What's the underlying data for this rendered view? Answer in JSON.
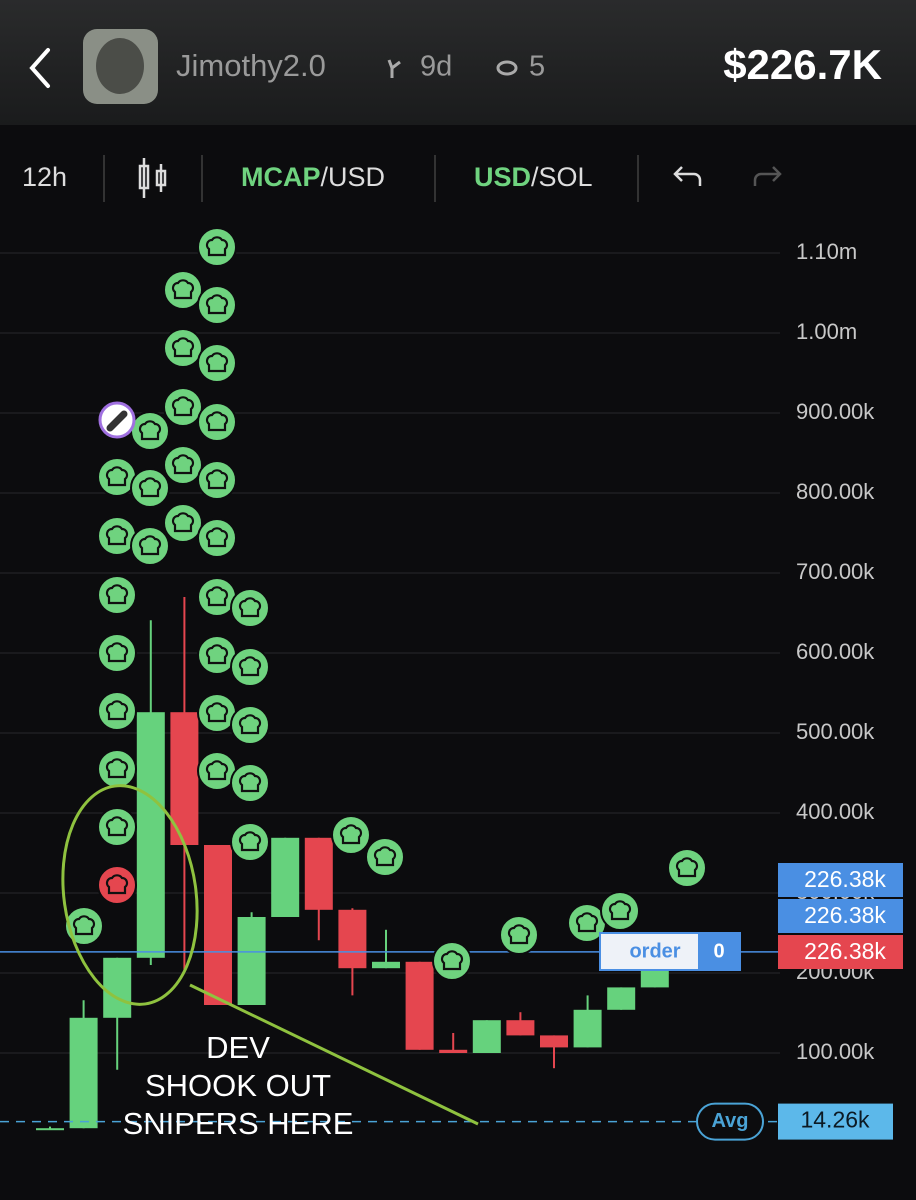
{
  "header": {
    "name": "Jimothy2.0",
    "age": "9d",
    "viewers": "5",
    "market_cap": "$226.7K"
  },
  "toolbar": {
    "interval": "12h",
    "pair1": {
      "highlight": "MCAP",
      "rest": "/USD"
    },
    "pair2": {
      "highlight": "USD",
      "rest": "/SOL"
    }
  },
  "chart_data": {
    "type": "candlestick",
    "open": [
      6000,
      6000,
      144000,
      219000,
      526000,
      360000,
      160000,
      270000,
      369000,
      279000,
      206000,
      214000,
      104000,
      100000,
      141000,
      122000,
      107000,
      154000,
      182000
    ],
    "high": [
      8000,
      166000,
      219000,
      641000,
      670000,
      360000,
      276000,
      369000,
      369000,
      281000,
      254000,
      214000,
      125000,
      141000,
      151000,
      122000,
      172000,
      182000,
      229000
    ],
    "low": [
      5000,
      6000,
      79000,
      210000,
      204000,
      160000,
      160000,
      270000,
      241000,
      172000,
      206000,
      104000,
      100000,
      100000,
      122000,
      81000,
      107000,
      154000,
      182000
    ],
    "close": [
      6000,
      144000,
      219000,
      526000,
      360000,
      160000,
      270000,
      369000,
      279000,
      206000,
      214000,
      104000,
      100000,
      141000,
      122000,
      107000,
      154000,
      182000,
      207000
    ],
    "up_color": "#66d27d",
    "down_color": "#e5464f",
    "ylim": [
      -80000,
      1140000
    ],
    "yticks": [
      {
        "value": 1100000,
        "label": "1.10m"
      },
      {
        "value": 1000000,
        "label": "1.00m"
      },
      {
        "value": 900000,
        "label": "900.00k"
      },
      {
        "value": 800000,
        "label": "800.00k"
      },
      {
        "value": 700000,
        "label": "700.00k"
      },
      {
        "value": 600000,
        "label": "600.00k"
      },
      {
        "value": 500000,
        "label": "500.00k"
      },
      {
        "value": 400000,
        "label": "400.00k"
      },
      {
        "value": 300000,
        "label": "300.00k"
      },
      {
        "value": 200000,
        "label": "200.00k"
      },
      {
        "value": 100000,
        "label": "100.00k"
      }
    ],
    "grid": true,
    "price_tags": [
      {
        "value": 226380,
        "label": "226.38k",
        "color": "#4a8fe3"
      },
      {
        "value": 226380,
        "label": "226.38k",
        "color": "#4a8fe3"
      },
      {
        "value": 226380,
        "label": "226.38k",
        "color": "#e5464f"
      }
    ],
    "order": {
      "label": "order",
      "count": "0"
    },
    "avg": {
      "label": "Avg",
      "value": 14260,
      "value_label": "14.26k"
    },
    "annotation": [
      "DEV",
      "SHOOK OUT",
      "SNIPERS HERE"
    ]
  }
}
